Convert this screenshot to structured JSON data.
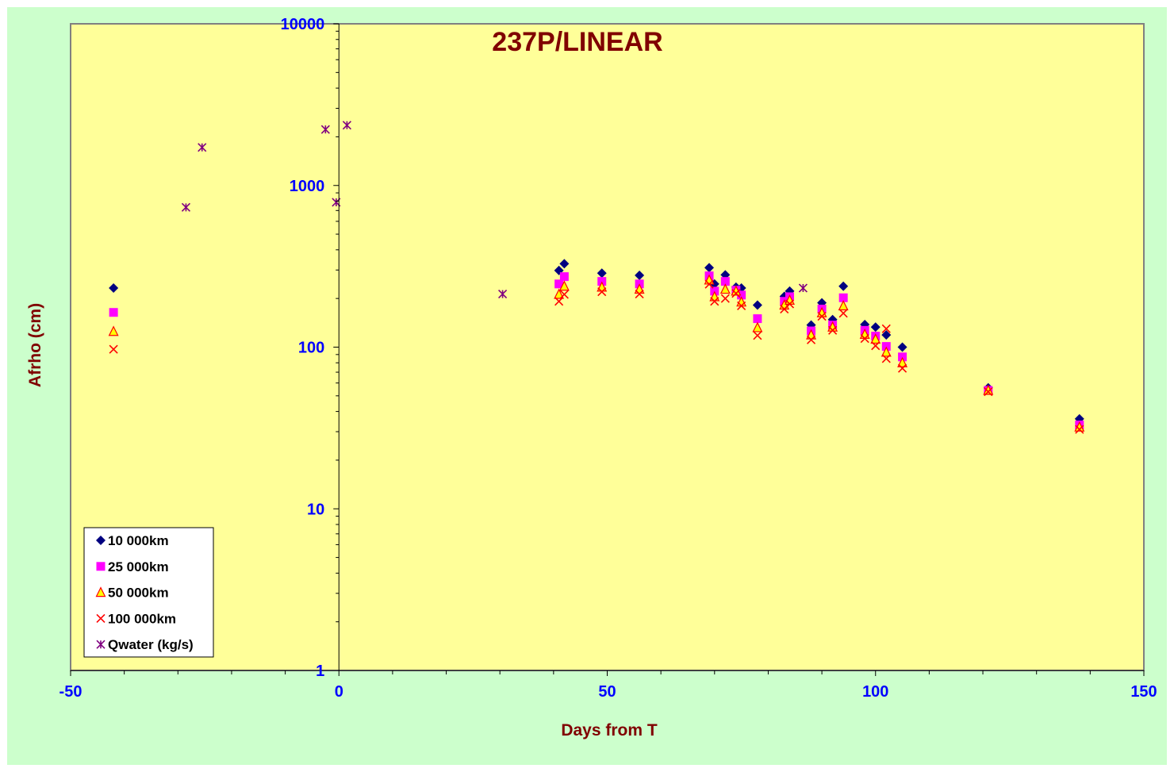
{
  "colors": {
    "page_bg": "#ccffcc",
    "plot_bg": "#ffff99",
    "title": "#800000",
    "axis_title": "#800000",
    "tick_label": "#0000ff",
    "axis_line": "#000000",
    "s10k": "#000080",
    "s25k": "#ff00ff",
    "s50k_fill": "#ffff00",
    "s50k_edge": "#ff0000",
    "s100k": "#ff0000",
    "qwater": "#800080"
  },
  "chart_data": {
    "type": "scatter",
    "title": "237P/LINEAR",
    "xlabel": "Days from T",
    "ylabel": "Afrho (cm)",
    "xlim": [
      -50,
      150
    ],
    "ylim": [
      1,
      10000
    ],
    "y_scale": "log",
    "x_ticks": [
      "-50",
      "0",
      "50",
      "100",
      "150"
    ],
    "x_tick_values": [
      -50,
      0,
      50,
      100,
      150
    ],
    "y_ticks": [
      "1",
      "10",
      "100",
      "1000",
      "10000"
    ],
    "y_tick_values": [
      1,
      10,
      100,
      1000,
      10000
    ],
    "grid": false,
    "legend_position": "bottom-left",
    "series": [
      {
        "name": "10 000km",
        "marker": "diamond",
        "points": [
          [
            -42,
            232
          ],
          [
            41,
            298
          ],
          [
            42,
            328
          ],
          [
            49,
            287
          ],
          [
            56,
            278
          ],
          [
            69,
            310
          ],
          [
            70,
            246
          ],
          [
            72,
            280
          ],
          [
            74,
            235
          ],
          [
            75,
            232
          ],
          [
            78,
            182
          ],
          [
            83,
            206
          ],
          [
            84,
            222
          ],
          [
            88,
            137
          ],
          [
            90,
            188
          ],
          [
            92,
            148
          ],
          [
            94,
            238
          ],
          [
            98,
            138
          ],
          [
            100,
            133
          ],
          [
            102,
            119
          ],
          [
            105,
            100
          ],
          [
            121,
            56
          ],
          [
            138,
            36
          ]
        ]
      },
      {
        "name": "25 000km",
        "marker": "square",
        "points": [
          [
            -42,
            164
          ],
          [
            41,
            246
          ],
          [
            42,
            273
          ],
          [
            49,
            255
          ],
          [
            56,
            246
          ],
          [
            69,
            276
          ],
          [
            70,
            222
          ],
          [
            72,
            255
          ],
          [
            74,
            225
          ],
          [
            75,
            210
          ],
          [
            78,
            150
          ],
          [
            83,
            192
          ],
          [
            84,
            205
          ],
          [
            88,
            126
          ],
          [
            90,
            172
          ],
          [
            92,
            137
          ],
          [
            94,
            202
          ],
          [
            98,
            127
          ],
          [
            100,
            117
          ],
          [
            102,
            101
          ],
          [
            105,
            87
          ],
          [
            121,
            54
          ],
          [
            138,
            33
          ]
        ]
      },
      {
        "name": "50 000km",
        "marker": "triangle",
        "points": [
          [
            -42,
            125
          ],
          [
            41,
            212
          ],
          [
            42,
            238
          ],
          [
            49,
            235
          ],
          [
            56,
            228
          ],
          [
            69,
            260
          ],
          [
            70,
            205
          ],
          [
            72,
            228
          ],
          [
            74,
            222
          ],
          [
            75,
            190
          ],
          [
            78,
            132
          ],
          [
            83,
            182
          ],
          [
            84,
            195
          ],
          [
            88,
            119
          ],
          [
            90,
            163
          ],
          [
            92,
            133
          ],
          [
            94,
            180
          ],
          [
            98,
            120
          ],
          [
            100,
            112
          ],
          [
            102,
            93
          ],
          [
            105,
            80
          ],
          [
            121,
            54
          ],
          [
            138,
            32
          ]
        ]
      },
      {
        "name": "100 000km",
        "marker": "x",
        "points": [
          [
            -42,
            97
          ],
          [
            41,
            192
          ],
          [
            42,
            212
          ],
          [
            49,
            220
          ],
          [
            56,
            213
          ],
          [
            69,
            245
          ],
          [
            70,
            192
          ],
          [
            72,
            200
          ],
          [
            74,
            215
          ],
          [
            75,
            180
          ],
          [
            78,
            118
          ],
          [
            83,
            172
          ],
          [
            84,
            185
          ],
          [
            88,
            111
          ],
          [
            90,
            155
          ],
          [
            92,
            127
          ],
          [
            94,
            162
          ],
          [
            98,
            113
          ],
          [
            100,
            102
          ],
          [
            102,
            85
          ],
          [
            102,
            130
          ],
          [
            105,
            74
          ],
          [
            121,
            53
          ],
          [
            138,
            31
          ]
        ]
      },
      {
        "name": "Qwater (kg/s)",
        "marker": "star",
        "points": [
          [
            -28.5,
            732
          ],
          [
            -25.5,
            1720
          ],
          [
            -2.5,
            2220
          ],
          [
            -0.5,
            787
          ],
          [
            1.5,
            2360
          ],
          [
            30.5,
            213
          ],
          [
            86.5,
            232
          ]
        ]
      }
    ]
  }
}
